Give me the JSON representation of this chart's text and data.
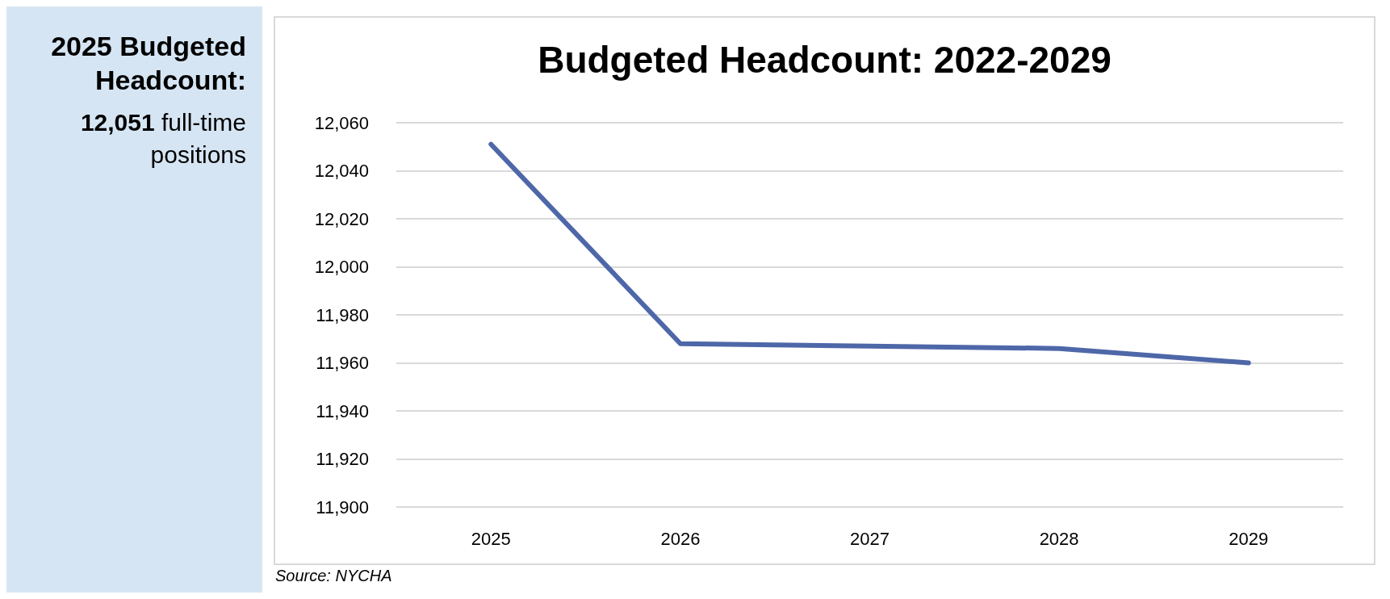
{
  "chart_data": [
    {
      "type": "other",
      "title": "2025 Budgeted Headcount:",
      "annotations": [
        "12,051",
        "full-time positions"
      ]
    },
    {
      "type": "line",
      "title": "Budgeted Headcount: 2022-2029",
      "categories": [
        "2025",
        "2026",
        "2027",
        "2028",
        "2029"
      ],
      "series": [
        {
          "color": "#4e67a8",
          "values": [
            12051,
            11968,
            11967,
            11966,
            11960
          ]
        }
      ],
      "ylim": [
        11900,
        12060
      ],
      "yticks": [
        {
          "value": 11900,
          "label": "11,900"
        },
        {
          "value": 11920,
          "label": "11,920"
        },
        {
          "value": 11940,
          "label": "11,940"
        },
        {
          "value": 11960,
          "label": "11,960"
        },
        {
          "value": 11980,
          "label": "11,980"
        },
        {
          "value": 12000,
          "label": "12,000"
        },
        {
          "value": 12020,
          "label": "12,020"
        },
        {
          "value": 12040,
          "label": "12,040"
        },
        {
          "value": 12060,
          "label": "12,060"
        }
      ],
      "grid": "y",
      "marker": "none",
      "line_style": "solid",
      "annotations": [
        "Source: NYCHA"
      ]
    }
  ]
}
